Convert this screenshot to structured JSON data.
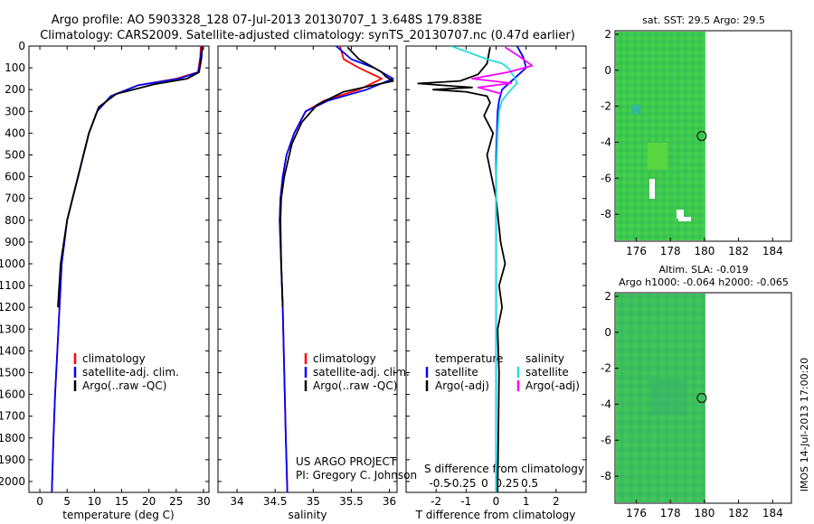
{
  "header": {
    "title_line1": "Argo profile: AO 5903328_128 07-Jul-2013 20130707_1 3.648S 179.838E",
    "title_line2": "Climatology: CARS2009. Satellite-adjusted climatology: synTS_20130707.nc (0.47d earlier)"
  },
  "colors": {
    "climatology": "#ff0000",
    "satellite": "#0000ff",
    "argo": "#000000",
    "sal_satellite": "#22dddd",
    "sal_argo": "#ff00ff",
    "map_green": "#33cc55"
  },
  "depth_axis": {
    "min": 0,
    "max": 2050,
    "ticks": [
      0,
      100,
      200,
      300,
      400,
      500,
      600,
      700,
      800,
      900,
      1000,
      1100,
      1200,
      1300,
      1400,
      1500,
      1600,
      1700,
      1800,
      1900,
      2000
    ]
  },
  "chart_data": [
    {
      "type": "line",
      "name": "temperature",
      "xlabel": "temperature (deg C)",
      "xlim": [
        -2,
        31
      ],
      "xticks": [
        0,
        5,
        10,
        15,
        20,
        25,
        30
      ],
      "ylim": [
        0,
        2050
      ],
      "legend": [
        "climatology",
        "satellite-adj. clim.",
        "Argo(..raw -QC)"
      ],
      "series": [
        {
          "name": "climatology",
          "color": "#ff0000",
          "x": [
            29.5,
            29.4,
            29.0,
            25,
            18,
            13,
            10.5,
            9,
            8,
            7,
            6,
            5,
            4.5,
            4,
            3.6,
            3.2,
            2.8,
            2.5,
            2.2
          ],
          "y": [
            0,
            50,
            120,
            150,
            180,
            230,
            300,
            400,
            500,
            600,
            700,
            800,
            900,
            1000,
            1200,
            1400,
            1600,
            1800,
            2050
          ]
        },
        {
          "name": "satellite-adj. clim.",
          "color": "#0000ff",
          "x": [
            29.7,
            29.5,
            29.1,
            25.5,
            18,
            13,
            10.5,
            9,
            8,
            7,
            6,
            5,
            4.5,
            4,
            3.6,
            3.2,
            2.8,
            2.5,
            2.2
          ],
          "y": [
            0,
            50,
            120,
            150,
            180,
            230,
            300,
            400,
            500,
            600,
            700,
            800,
            900,
            1000,
            1200,
            1400,
            1600,
            1800,
            2050
          ]
        },
        {
          "name": "Argo",
          "color": "#000000",
          "x": [
            29.8,
            29.6,
            29.2,
            27,
            21,
            14,
            10.8,
            9,
            8,
            7,
            6,
            5,
            4.4,
            3.8,
            3.3
          ],
          "y": [
            5,
            60,
            120,
            150,
            175,
            220,
            280,
            400,
            500,
            600,
            700,
            800,
            900,
            1000,
            1200
          ]
        }
      ]
    },
    {
      "type": "line",
      "name": "salinity",
      "xlabel": "salinity",
      "xlim": [
        33.75,
        36.1
      ],
      "xticks": [
        34,
        34.5,
        35,
        35.5,
        36
      ],
      "ylim": [
        0,
        2050
      ],
      "legend": [
        "climatology",
        "satellite-adj. clim.",
        "Argo(..raw -QC)"
      ],
      "credit": [
        "US ARGO PROJECT",
        "PI: Gregory C. Johnson"
      ],
      "series": [
        {
          "name": "climatology",
          "color": "#ff0000",
          "x": [
            35.35,
            35.4,
            35.6,
            35.9,
            35.6,
            35.15,
            34.9,
            34.75,
            34.65,
            34.6,
            34.57,
            34.56,
            34.58,
            34.6,
            34.62,
            34.64,
            34.66
          ],
          "y": [
            0,
            60,
            100,
            150,
            200,
            250,
            300,
            400,
            500,
            600,
            700,
            800,
            1000,
            1200,
            1500,
            1800,
            2050
          ]
        },
        {
          "name": "satellite-adj. clim.",
          "color": "#0000ff",
          "x": [
            35.3,
            35.5,
            35.8,
            36.05,
            35.7,
            35.2,
            34.9,
            34.75,
            34.65,
            34.6,
            34.57,
            34.56,
            34.58,
            34.6,
            34.62,
            34.64,
            34.66
          ],
          "y": [
            0,
            60,
            100,
            150,
            200,
            250,
            300,
            400,
            500,
            600,
            700,
            800,
            1000,
            1200,
            1500,
            1800,
            2050
          ]
        },
        {
          "name": "Argo",
          "color": "#000000",
          "x": [
            35.45,
            35.6,
            35.9,
            35.95,
            36.05,
            35.4,
            35.05,
            34.85,
            34.72,
            34.62,
            34.58,
            34.57,
            34.58,
            34.6
          ],
          "y": [
            5,
            60,
            120,
            140,
            160,
            210,
            270,
            350,
            450,
            600,
            700,
            800,
            1000,
            1200
          ]
        }
      ]
    },
    {
      "type": "line",
      "name": "difference",
      "xlabel": "T difference from climatology",
      "xlabel_top": "S difference from climatology",
      "xlim": [
        -3,
        3
      ],
      "xticks": [
        -2,
        -1,
        0,
        1,
        2
      ],
      "xticks_top": [
        -0.5,
        -0.25,
        0,
        0.25,
        0.5
      ],
      "ylim": [
        0,
        2050
      ],
      "legend_headers": [
        "temperature",
        "salinity"
      ],
      "legend": [
        "satellite",
        "Argo(-adj)",
        "satellite",
        "Argo(-adj)"
      ],
      "series": [
        {
          "name": "temperature satellite",
          "color": "#0000ff",
          "x": [
            0.7,
            0.9,
            1.0,
            0.6,
            0.2,
            0.1,
            0.05,
            0,
            0,
            0,
            0,
            0
          ],
          "y": [
            0,
            50,
            100,
            150,
            200,
            250,
            300,
            500,
            800,
            1200,
            1600,
            2050
          ]
        },
        {
          "name": "temperature Argo",
          "color": "#000000",
          "x": [
            -0.2,
            -0.3,
            -0.6,
            -1.2,
            -2.6,
            -0.8,
            -2.1,
            -1.0,
            -0.3,
            -0.2,
            -0.4,
            -0.1,
            -0.3,
            0,
            0.15,
            0.3,
            0.1,
            0.2,
            0.05,
            0.1,
            0.05
          ],
          "y": [
            5,
            80,
            130,
            160,
            172,
            190,
            200,
            210,
            230,
            260,
            320,
            400,
            500,
            700,
            900,
            1000,
            1100,
            1200,
            1300,
            1500,
            2050
          ]
        },
        {
          "name": "salinity satellite",
          "color": "#22dddd",
          "x": [
            -1.5,
            -0.9,
            -0.3,
            0.2,
            0.4,
            0.6,
            0.7,
            0.5,
            0.2,
            0.1,
            0.05,
            0,
            0,
            0
          ],
          "y": [
            0,
            30,
            60,
            80,
            100,
            140,
            170,
            200,
            250,
            300,
            400,
            600,
            1000,
            2050
          ]
        },
        {
          "name": "salinity Argo",
          "color": "#ff00ff",
          "x": [
            0.3,
            0.8,
            1.2,
            0.4,
            -0.8,
            0.5,
            -0.6,
            0.2
          ],
          "y": [
            5,
            50,
            90,
            120,
            150,
            170,
            190,
            220
          ]
        }
      ]
    }
  ],
  "maps": {
    "sst": {
      "title": "sat. SST: 29.5  Argo: 29.5",
      "xticks": [
        176,
        178,
        180,
        182,
        184
      ],
      "yticks": [
        2,
        0,
        -2,
        -4,
        -6,
        -8
      ]
    },
    "sla": {
      "title_line1": "Altim. SLA: -0.019",
      "title_line2": "Argo h1000: -0.064  h2000: -0.065",
      "xticks": [
        176,
        178,
        180,
        182,
        184
      ],
      "yticks": [
        2,
        0,
        -2,
        -4,
        -6,
        -8
      ]
    },
    "xlim": [
      174.75,
      185.1
    ],
    "ylim": [
      -9.5,
      2.2
    ],
    "data_xmax": 180.05,
    "argo_position": {
      "lon": 179.838,
      "lat": -3.648
    }
  },
  "footer": {
    "stamp": "IMOS 14-Jul-2013 17:00:20"
  }
}
